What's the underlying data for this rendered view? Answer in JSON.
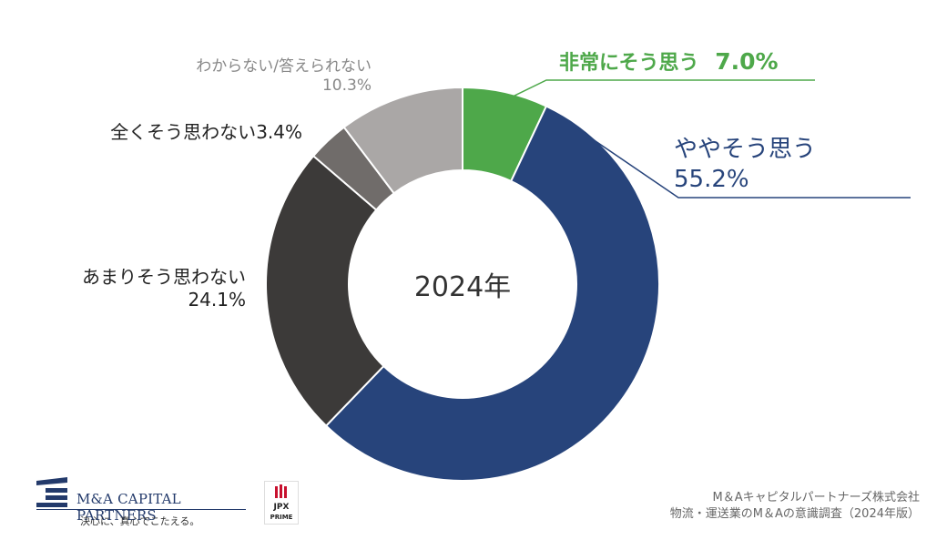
{
  "chart_data": {
    "type": "pie",
    "center_label": "2024年",
    "slices": [
      {
        "label": "非常にそう思う",
        "value": 7.0,
        "value_text": "7.0%",
        "color": "#4ea84a"
      },
      {
        "label": "ややそう思う",
        "value": 55.2,
        "value_text": "55.2%",
        "color": "#27447b"
      },
      {
        "label": "あまりそう思わない",
        "value": 24.1,
        "value_text": "24.1%",
        "color": "#3c3a39"
      },
      {
        "label": "全くそう思わない",
        "value": 3.4,
        "value_text": "3.4%",
        "color": "#706c6a"
      },
      {
        "label": "わからない/答えられない",
        "value": 10.3,
        "value_text": "10.3%",
        "color": "#aaa7a6"
      }
    ]
  },
  "brand": {
    "name": "M&A CAPITAL PARTNERS",
    "tagline": "決心に、真心でこたえる。",
    "jpx_top": "JPX",
    "jpx_bottom": "PRIME"
  },
  "source": {
    "line1": "M＆Aキャピタルパートナーズ株式会社",
    "line2": "物流・運送業のM＆Aの意識調査（2024年版）"
  }
}
